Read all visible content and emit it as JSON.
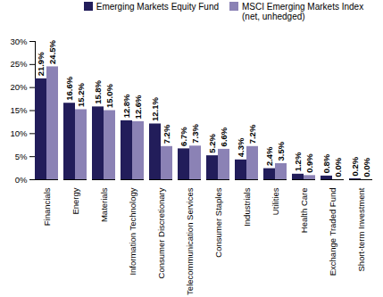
{
  "chart_data": {
    "type": "bar",
    "categories": [
      "Financials",
      "Energy",
      "Materials",
      "Information Technology",
      "Consumer Discretionary",
      "Telecommunication Services",
      "Consumer Staples",
      "Industrials",
      "Utilities",
      "Health Care",
      "Exchange Traded Fund",
      "Short-term Investment"
    ],
    "series": [
      {
        "name": "Emerging Markets Equity Fund",
        "color": "#221d5a",
        "values": [
          21.9,
          16.6,
          15.8,
          12.8,
          12.1,
          6.7,
          5.2,
          4.3,
          2.4,
          1.2,
          0.8,
          0.2
        ],
        "value_labels": [
          "21.9%",
          "16.6%",
          "15.8%",
          "12.8%",
          "12.1%",
          "6.7%",
          "5.2%",
          "4.3%",
          "2.4%",
          "1.2%",
          "0.8%",
          "0.2%"
        ]
      },
      {
        "name": "MSCI Emerging Markets Index (net, unhedged)",
        "color": "#8b82b5",
        "values": [
          24.5,
          15.2,
          15.0,
          12.6,
          7.2,
          7.3,
          6.6,
          7.2,
          3.5,
          0.9,
          0.0,
          0.0
        ],
        "value_labels": [
          "24.5%",
          "15.2%",
          "15.0%",
          "12.6%",
          "7.2%",
          "7.3%",
          "6.6%",
          "7.2%",
          "3.5%",
          "0.9%",
          "0.0%",
          "0.0%"
        ]
      }
    ],
    "ylim": [
      0,
      30
    ],
    "yticks": [
      {
        "value": 0,
        "label": "0%"
      },
      {
        "value": 5,
        "label": "5%"
      },
      {
        "value": 10,
        "label": "10%"
      },
      {
        "value": 15,
        "label": "15%"
      },
      {
        "value": 20,
        "label": "20%"
      },
      {
        "value": 25,
        "label": "25%"
      },
      {
        "value": 30,
        "label": "30%"
      }
    ],
    "grid": false,
    "legend": "top",
    "data_labels": true
  }
}
